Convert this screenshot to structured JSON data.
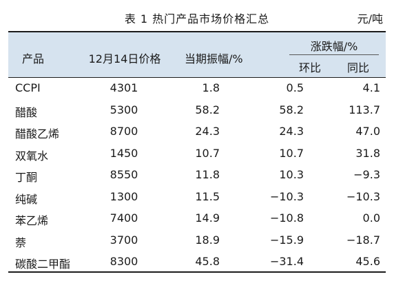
{
  "title": "表 1  热门产品市场价格汇总",
  "unit": "元/吨",
  "headers": {
    "product": "产品",
    "price": "12月14日价格",
    "amplitude": "当期振幅/%",
    "change": "涨跌幅/%",
    "mom": "环比",
    "yoy": "同比"
  },
  "rows": [
    {
      "name": "CCPI",
      "price": "4301",
      "amplitude": "1.8",
      "mom": "0.5",
      "yoy": "4.1"
    },
    {
      "name": "醋酸",
      "price": "5300",
      "amplitude": "58.2",
      "mom": "58.2",
      "yoy": "113.7"
    },
    {
      "name": "醋酸乙烯",
      "price": "8700",
      "amplitude": "24.3",
      "mom": "24.3",
      "yoy": "47.0"
    },
    {
      "name": "双氧水",
      "price": "1450",
      "amplitude": "10.7",
      "mom": "10.7",
      "yoy": "31.8"
    },
    {
      "name": "丁酮",
      "price": "8550",
      "amplitude": "11.8",
      "mom": "10.3",
      "yoy": "−9.3"
    },
    {
      "name": "纯碱",
      "price": "1300",
      "amplitude": "11.5",
      "mom": "−10.3",
      "yoy": "−10.3"
    },
    {
      "name": "苯乙烯",
      "price": "7400",
      "amplitude": "14.9",
      "mom": "−10.8",
      "yoy": "0.0"
    },
    {
      "name": "萘",
      "price": "3700",
      "amplitude": "18.9",
      "mom": "−15.9",
      "yoy": "−18.7"
    },
    {
      "name": "碳酸二甲酯",
      "price": "8300",
      "amplitude": "45.8",
      "mom": "−31.4",
      "yoy": "45.6"
    }
  ]
}
